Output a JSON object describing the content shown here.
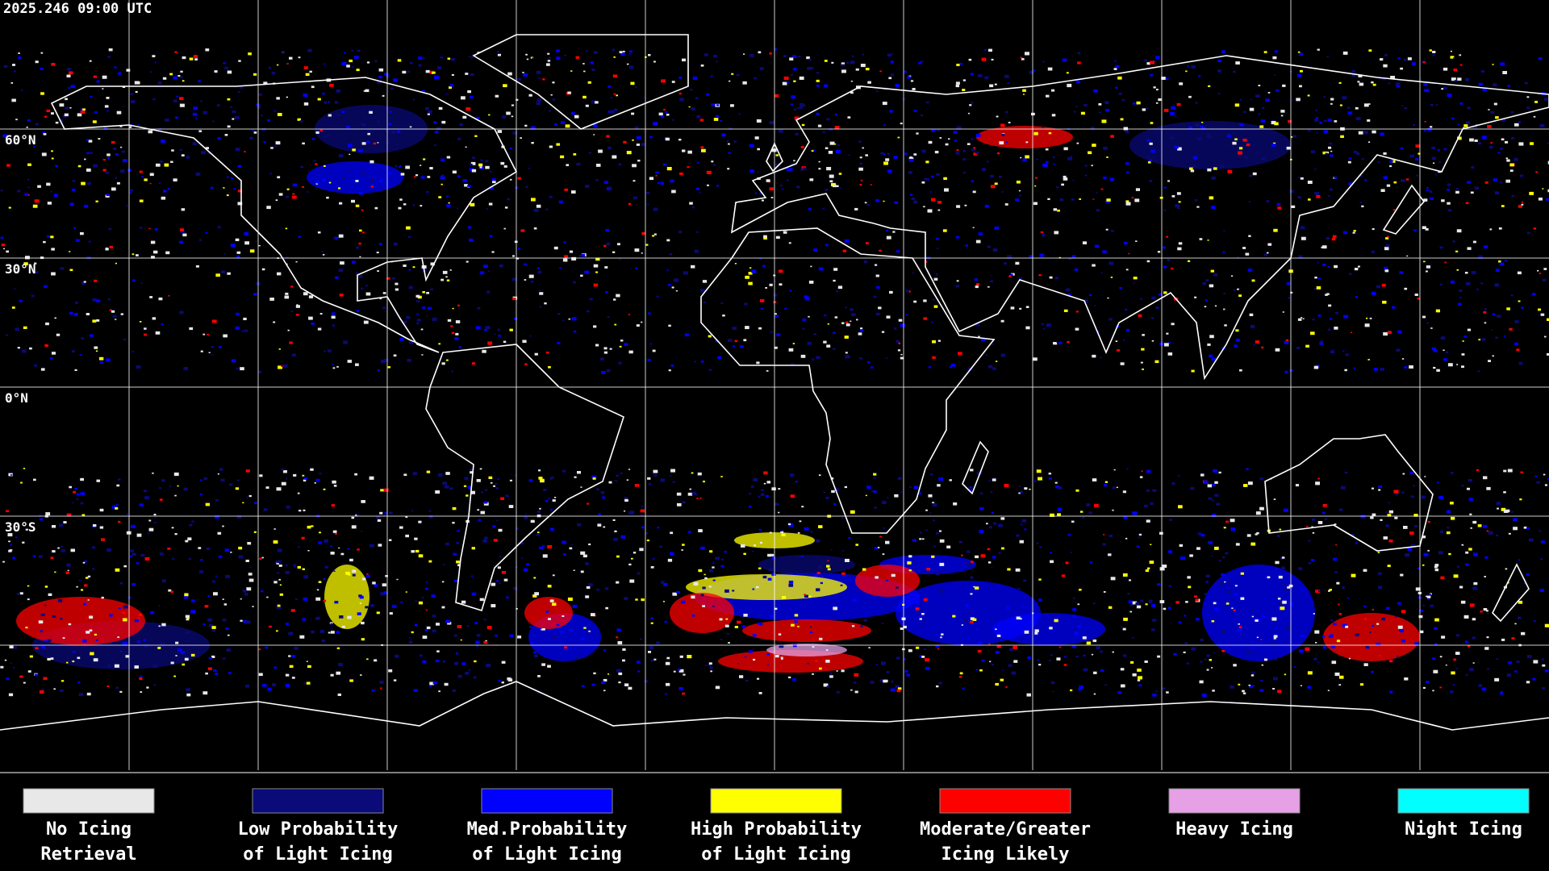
{
  "header": {
    "timestamp": "2025.246 09:00 UTC"
  },
  "map": {
    "latitude_labels": [
      "60°N",
      "30°N",
      "0°N",
      "30°S"
    ]
  },
  "legend": [
    {
      "lines": [
        "No Icing",
        "Retrieval"
      ],
      "color": "#e8e8e8"
    },
    {
      "lines": [
        "Low Probability",
        "of Light Icing"
      ],
      "color": "#0a0a78"
    },
    {
      "lines": [
        "Med.Probability",
        "of Light Icing"
      ],
      "color": "#0000ff"
    },
    {
      "lines": [
        "High Probability",
        "of Light Icing"
      ],
      "color": "#ffff00"
    },
    {
      "lines": [
        "Moderate/Greater",
        "Icing Likely"
      ],
      "color": "#ff0000"
    },
    {
      "lines": [
        "Heavy Icing"
      ],
      "color": "#e6a0e6"
    },
    {
      "lines": [
        "Night Icing"
      ],
      "color": "#00ffff"
    }
  ]
}
